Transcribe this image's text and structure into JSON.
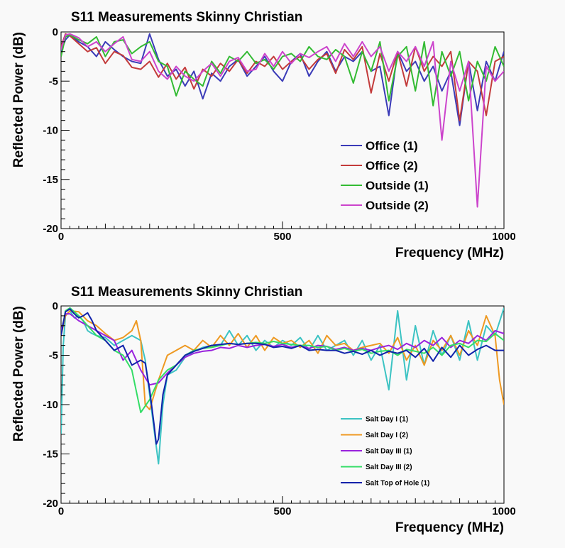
{
  "chart_data": [
    {
      "type": "line",
      "title": "S11 Measurements Skinny Christian",
      "xlabel": "Frequency (MHz)",
      "ylabel": "Reflected Power (dB)",
      "xlim": [
        0,
        1000
      ],
      "ylim": [
        -20,
        0
      ],
      "x_tick_labels": [
        "0",
        "500",
        "1000"
      ],
      "y_tick_labels": [
        "0",
        "-5",
        "-10",
        "-15",
        "-20"
      ],
      "grid": false,
      "legend_position": "bottom-right",
      "legend_size": "large",
      "series": [
        {
          "name": "Office (1)",
          "color": "#3b3bb8",
          "x": [
            0,
            10,
            20,
            40,
            60,
            80,
            100,
            120,
            140,
            160,
            180,
            200,
            220,
            240,
            260,
            280,
            300,
            320,
            340,
            360,
            380,
            400,
            420,
            440,
            460,
            480,
            500,
            520,
            540,
            560,
            580,
            600,
            620,
            640,
            660,
            680,
            700,
            720,
            740,
            760,
            780,
            800,
            820,
            840,
            860,
            880,
            900,
            920,
            940,
            960,
            980,
            1000
          ],
          "y": [
            -2.0,
            -0.8,
            -0.3,
            -1.0,
            -1.5,
            -2.5,
            -1.0,
            -1.8,
            -2.5,
            -3.0,
            -3.2,
            -0.2,
            -2.8,
            -4.5,
            -3.8,
            -5.5,
            -4.0,
            -6.8,
            -4.2,
            -5.0,
            -3.5,
            -2.8,
            -4.5,
            -3.5,
            -2.5,
            -4.0,
            -5.0,
            -3.0,
            -2.2,
            -4.5,
            -3.0,
            -2.0,
            -4.0,
            -2.5,
            -3.0,
            -2.0,
            -4.0,
            -3.5,
            -8.5,
            -2.0,
            -4.0,
            -3.0,
            -5.0,
            -3.5,
            -6.0,
            -4.0,
            -9.5,
            -3.0,
            -8.0,
            -3.0,
            -5.0,
            -2.0
          ]
        },
        {
          "name": "Office (2)",
          "color": "#c33b3b",
          "x": [
            0,
            10,
            20,
            40,
            60,
            80,
            100,
            120,
            140,
            160,
            180,
            200,
            220,
            240,
            260,
            280,
            300,
            320,
            340,
            360,
            380,
            400,
            420,
            440,
            460,
            480,
            500,
            520,
            540,
            560,
            580,
            600,
            620,
            640,
            660,
            680,
            700,
            720,
            740,
            760,
            780,
            800,
            820,
            840,
            860,
            880,
            900,
            920,
            940,
            960,
            980,
            1000
          ],
          "y": [
            -1.5,
            -0.2,
            -0.4,
            -1.2,
            -2.0,
            -1.6,
            -3.2,
            -2.0,
            -2.4,
            -3.6,
            -3.8,
            -3.0,
            -4.6,
            -3.2,
            -4.8,
            -3.6,
            -5.8,
            -3.8,
            -4.5,
            -3.2,
            -4.0,
            -2.8,
            -4.2,
            -3.0,
            -3.5,
            -2.5,
            -3.8,
            -3.0,
            -2.5,
            -3.8,
            -2.8,
            -2.2,
            -4.2,
            -1.8,
            -2.8,
            -1.5,
            -6.2,
            -2.2,
            -5.0,
            -2.0,
            -5.5,
            -1.5,
            -4.0,
            -2.5,
            -3.5,
            -2.0,
            -9.0,
            -3.0,
            -4.0,
            -8.5,
            -3.0,
            -2.5
          ]
        },
        {
          "name": "Outside (1)",
          "color": "#33bb33",
          "x": [
            0,
            10,
            20,
            40,
            60,
            80,
            100,
            120,
            140,
            160,
            180,
            200,
            220,
            240,
            260,
            280,
            300,
            320,
            340,
            360,
            380,
            400,
            420,
            440,
            460,
            480,
            500,
            520,
            540,
            560,
            580,
            600,
            620,
            640,
            660,
            680,
            700,
            720,
            740,
            760,
            780,
            800,
            820,
            840,
            860,
            880,
            900,
            920,
            940,
            960,
            980,
            1000
          ],
          "y": [
            -2.5,
            -0.5,
            -0.3,
            -0.8,
            -1.2,
            -0.5,
            -2.5,
            -1.0,
            -0.8,
            -2.2,
            -1.5,
            -1.0,
            -3.0,
            -3.5,
            -6.5,
            -4.0,
            -4.8,
            -5.5,
            -3.0,
            -4.2,
            -2.5,
            -3.0,
            -2.0,
            -3.2,
            -2.8,
            -3.8,
            -2.5,
            -2.2,
            -3.0,
            -1.5,
            -2.5,
            -2.8,
            -1.8,
            -2.5,
            -5.2,
            -2.0,
            -4.0,
            -1.0,
            -7.0,
            -2.5,
            -1.5,
            -6.0,
            -1.0,
            -7.5,
            -2.0,
            -4.5,
            -2.0,
            -7.0,
            -3.0,
            -5.0,
            -1.5,
            -3.5
          ]
        },
        {
          "name": "Outside (2)",
          "color": "#cc44cc",
          "x": [
            0,
            10,
            20,
            40,
            60,
            80,
            100,
            120,
            140,
            160,
            180,
            200,
            220,
            240,
            260,
            280,
            300,
            320,
            340,
            360,
            380,
            400,
            420,
            440,
            460,
            480,
            500,
            520,
            540,
            560,
            580,
            600,
            620,
            640,
            660,
            680,
            700,
            720,
            740,
            760,
            780,
            800,
            820,
            840,
            860,
            880,
            900,
            920,
            940,
            960,
            980,
            1000
          ],
          "y": [
            -1.8,
            -0.3,
            -0.2,
            -0.6,
            -1.5,
            -1.0,
            -2.0,
            -1.2,
            -0.5,
            -2.8,
            -3.0,
            -2.0,
            -4.0,
            -4.8,
            -3.5,
            -4.5,
            -5.0,
            -4.0,
            -3.2,
            -4.5,
            -3.0,
            -2.6,
            -4.0,
            -3.8,
            -2.2,
            -3.5,
            -2.0,
            -3.2,
            -2.2,
            -2.6,
            -2.0,
            -1.5,
            -3.0,
            -1.2,
            -2.5,
            -1.0,
            -2.5,
            -1.5,
            -4.0,
            -2.0,
            -3.0,
            -1.5,
            -3.5,
            -1.0,
            -11.0,
            -3.0,
            -6.0,
            -3.0,
            -17.8,
            -3.5,
            -5.0,
            -4.0
          ]
        }
      ]
    },
    {
      "type": "line",
      "title": "S11 Measurements Skinny Christian",
      "xlabel": "Frequency (MHz)",
      "ylabel": "Reflected Power (dB)",
      "xlim": [
        0,
        1000
      ],
      "ylim": [
        -20,
        0
      ],
      "x_tick_labels": [
        "0",
        "500",
        "1000"
      ],
      "y_tick_labels": [
        "0",
        "-5",
        "-10",
        "-15",
        "-20"
      ],
      "grid": false,
      "legend_position": "bottom-right",
      "legend_size": "small",
      "series": [
        {
          "name": "Salt Day I (1)",
          "color": "#3cc3c3",
          "x": [
            0,
            5,
            10,
            20,
            30,
            40,
            50,
            60,
            70,
            80,
            100,
            120,
            140,
            160,
            180,
            190,
            200,
            210,
            220,
            230,
            240,
            260,
            280,
            300,
            320,
            340,
            360,
            380,
            400,
            420,
            440,
            460,
            480,
            500,
            520,
            540,
            560,
            580,
            600,
            620,
            640,
            660,
            680,
            700,
            720,
            740,
            760,
            780,
            800,
            820,
            840,
            860,
            880,
            900,
            920,
            940,
            960,
            980,
            1000
          ],
          "y": [
            -13.0,
            -4.0,
            -1.0,
            -0.5,
            -1.2,
            -1.0,
            -1.5,
            -2.5,
            -2.8,
            -3.0,
            -3.2,
            -4.0,
            -3.5,
            -3.0,
            -3.5,
            -5.5,
            -9.0,
            -12.5,
            -16.0,
            -10.0,
            -7.0,
            -6.5,
            -5.2,
            -4.6,
            -4.2,
            -4.0,
            -4.0,
            -2.5,
            -4.0,
            -3.0,
            -4.5,
            -3.5,
            -4.2,
            -3.5,
            -4.0,
            -3.2,
            -4.5,
            -3.0,
            -4.5,
            -4.0,
            -3.5,
            -5.0,
            -3.5,
            -5.5,
            -4.0,
            -8.5,
            -0.5,
            -7.5,
            -2.0,
            -6.0,
            -2.5,
            -5.0,
            -3.0,
            -5.5,
            -1.5,
            -5.5,
            -2.0,
            -3.0,
            -0.2
          ]
        },
        {
          "name": "Salt Day I (2)",
          "color": "#ee9922",
          "x": [
            0,
            10,
            20,
            40,
            60,
            80,
            100,
            120,
            140,
            160,
            170,
            180,
            190,
            200,
            220,
            240,
            260,
            280,
            300,
            320,
            340,
            360,
            380,
            400,
            420,
            440,
            460,
            480,
            500,
            520,
            540,
            560,
            580,
            600,
            620,
            640,
            660,
            680,
            700,
            720,
            740,
            760,
            780,
            800,
            820,
            840,
            860,
            880,
            900,
            920,
            940,
            960,
            980,
            990,
            1000
          ],
          "y": [
            -3.0,
            -1.0,
            -0.5,
            -0.6,
            -1.5,
            -2.0,
            -2.8,
            -3.5,
            -3.2,
            -2.5,
            -1.5,
            -3.5,
            -10.0,
            -10.5,
            -7.5,
            -5.0,
            -4.5,
            -4.0,
            -4.5,
            -3.5,
            -4.2,
            -3.0,
            -4.0,
            -2.8,
            -4.2,
            -3.0,
            -4.5,
            -3.2,
            -3.8,
            -3.5,
            -4.2,
            -3.5,
            -4.8,
            -3.0,
            -4.0,
            -3.8,
            -4.5,
            -4.2,
            -4.0,
            -3.8,
            -4.8,
            -3.2,
            -5.5,
            -4.0,
            -6.0,
            -3.5,
            -4.5,
            -3.0,
            -5.0,
            -2.5,
            -4.0,
            -1.0,
            -3.0,
            -7.5,
            -10.0
          ]
        },
        {
          "name": "Salt Day III (1)",
          "color": "#9922dd",
          "x": [
            0,
            10,
            20,
            40,
            60,
            80,
            100,
            120,
            140,
            160,
            180,
            200,
            220,
            240,
            260,
            280,
            300,
            320,
            340,
            360,
            380,
            400,
            420,
            440,
            460,
            480,
            500,
            520,
            540,
            560,
            580,
            600,
            620,
            640,
            660,
            680,
            700,
            720,
            740,
            760,
            780,
            800,
            820,
            840,
            860,
            880,
            900,
            920,
            940,
            960,
            980,
            1000
          ],
          "y": [
            -2.5,
            -0.8,
            -0.8,
            -1.5,
            -2.0,
            -2.5,
            -3.0,
            -3.5,
            -5.5,
            -4.5,
            -6.5,
            -8.0,
            -7.8,
            -6.8,
            -6.0,
            -5.2,
            -4.8,
            -4.6,
            -4.5,
            -4.2,
            -4.3,
            -4.0,
            -4.2,
            -4.0,
            -3.9,
            -4.1,
            -3.9,
            -4.2,
            -4.0,
            -4.3,
            -4.0,
            -4.1,
            -4.4,
            -4.2,
            -4.5,
            -4.3,
            -4.5,
            -4.2,
            -4.0,
            -4.4,
            -3.8,
            -4.2,
            -3.5,
            -4.0,
            -3.2,
            -4.2,
            -3.5,
            -3.8,
            -3.0,
            -3.5,
            -2.5,
            -2.8
          ]
        },
        {
          "name": "Salt Day III (2)",
          "color": "#33dd66",
          "x": [
            0,
            10,
            20,
            40,
            60,
            80,
            100,
            120,
            140,
            160,
            180,
            200,
            220,
            240,
            260,
            280,
            300,
            320,
            340,
            360,
            380,
            400,
            420,
            440,
            460,
            480,
            500,
            520,
            540,
            560,
            580,
            600,
            620,
            640,
            660,
            680,
            700,
            720,
            740,
            760,
            780,
            800,
            820,
            840,
            860,
            880,
            900,
            920,
            940,
            960,
            980,
            1000
          ],
          "y": [
            -3.0,
            -0.5,
            -0.2,
            -1.0,
            -2.0,
            -3.0,
            -3.5,
            -4.5,
            -5.0,
            -6.5,
            -10.8,
            -9.5,
            -7.5,
            -6.5,
            -6.0,
            -5.0,
            -4.5,
            -4.3,
            -4.2,
            -4.0,
            -3.8,
            -3.9,
            -3.8,
            -3.7,
            -3.8,
            -3.6,
            -3.8,
            -3.9,
            -4.0,
            -4.0,
            -4.2,
            -4.1,
            -4.5,
            -4.3,
            -4.6,
            -4.4,
            -4.8,
            -4.6,
            -4.5,
            -5.0,
            -4.4,
            -4.6,
            -4.8,
            -4.2,
            -5.0,
            -4.0,
            -3.8,
            -4.2,
            -3.5,
            -3.6,
            -2.8,
            -3.5
          ]
        },
        {
          "name": "Salt Top of Hole (1)",
          "color": "#1122aa",
          "x": [
            0,
            10,
            20,
            30,
            40,
            50,
            60,
            70,
            80,
            100,
            120,
            140,
            160,
            180,
            190,
            200,
            210,
            215,
            220,
            230,
            240,
            260,
            280,
            300,
            320,
            340,
            360,
            380,
            400,
            420,
            440,
            460,
            480,
            500,
            520,
            540,
            560,
            580,
            600,
            620,
            640,
            660,
            680,
            700,
            720,
            740,
            760,
            780,
            800,
            820,
            840,
            860,
            880,
            900,
            920,
            940,
            960,
            980,
            1000
          ],
          "y": [
            -3.0,
            -0.6,
            -0.3,
            -0.8,
            -1.2,
            -1.0,
            -0.7,
            -1.5,
            -2.5,
            -3.5,
            -4.5,
            -4.0,
            -6.0,
            -5.5,
            -5.8,
            -8.5,
            -12.0,
            -14.0,
            -13.5,
            -9.0,
            -7.0,
            -6.0,
            -5.0,
            -4.6,
            -4.3,
            -4.0,
            -3.9,
            -3.8,
            -3.9,
            -3.8,
            -3.8,
            -3.9,
            -4.2,
            -4.1,
            -4.3,
            -4.0,
            -4.5,
            -4.4,
            -4.5,
            -4.5,
            -4.8,
            -4.6,
            -4.9,
            -4.5,
            -5.0,
            -4.6,
            -4.8,
            -4.5,
            -5.2,
            -4.3,
            -5.6,
            -4.2,
            -5.2,
            -4.0,
            -5.0,
            -4.4,
            -4.0,
            -4.5,
            -4.5
          ]
        }
      ]
    }
  ]
}
